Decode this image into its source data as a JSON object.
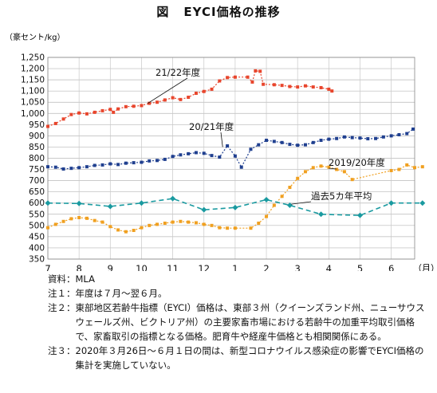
{
  "figure": {
    "label": "図",
    "title": "EYCI価格の推移"
  },
  "chart_data": {
    "type": "line",
    "unit_label": "（豪セント/kg）",
    "x_ticks": [
      "7",
      "8",
      "9",
      "10",
      "11",
      "12",
      "1",
      "2",
      "3",
      "4",
      "5",
      "6"
    ],
    "x_unit": "（月）",
    "ylim": [
      350,
      1250
    ],
    "y_ticks": [
      350,
      400,
      450,
      500,
      550,
      600,
      650,
      700,
      750,
      800,
      850,
      900,
      950,
      1000,
      1050,
      1100,
      1150,
      1200,
      1250
    ],
    "grid": true,
    "series": [
      {
        "name": "21/22年度",
        "color": "#e8452c",
        "style": "dots",
        "points": [
          [
            0,
            942
          ],
          [
            0.25,
            955
          ],
          [
            0.5,
            975
          ],
          [
            0.75,
            995
          ],
          [
            1.0,
            1002
          ],
          [
            1.25,
            998
          ],
          [
            1.5,
            1005
          ],
          [
            1.75,
            1012
          ],
          [
            2.0,
            1018
          ],
          [
            2.1,
            1005
          ],
          [
            2.25,
            1020
          ],
          [
            2.5,
            1030
          ],
          [
            2.75,
            1032
          ],
          [
            3.0,
            1035
          ],
          [
            3.25,
            1045
          ],
          [
            3.5,
            1050
          ],
          [
            3.75,
            1060
          ],
          [
            4.0,
            1070
          ],
          [
            4.25,
            1062
          ],
          [
            4.5,
            1072
          ],
          [
            4.75,
            1090
          ],
          [
            5.0,
            1098
          ],
          [
            5.25,
            1108
          ],
          [
            5.5,
            1145
          ],
          [
            5.75,
            1160
          ],
          [
            6.0,
            1162
          ],
          [
            6.4,
            1162
          ],
          [
            6.55,
            1140
          ],
          [
            6.65,
            1190
          ],
          [
            6.8,
            1188
          ],
          [
            6.9,
            1130
          ],
          [
            7.25,
            1128
          ],
          [
            7.5,
            1125
          ],
          [
            7.75,
            1120
          ],
          [
            8.0,
            1118
          ],
          [
            8.25,
            1123
          ],
          [
            8.5,
            1118
          ],
          [
            8.75,
            1115
          ],
          [
            9.0,
            1108
          ],
          [
            9.1,
            1100
          ]
        ]
      },
      {
        "name": "20/21年度",
        "color": "#1f3f8f",
        "style": "dots",
        "points": [
          [
            0,
            762
          ],
          [
            0.25,
            760
          ],
          [
            0.5,
            752
          ],
          [
            0.75,
            755
          ],
          [
            1.0,
            758
          ],
          [
            1.25,
            762
          ],
          [
            1.5,
            768
          ],
          [
            1.75,
            770
          ],
          [
            2.0,
            775
          ],
          [
            2.25,
            772
          ],
          [
            2.5,
            778
          ],
          [
            2.75,
            780
          ],
          [
            3.0,
            782
          ],
          [
            3.25,
            788
          ],
          [
            3.5,
            790
          ],
          [
            3.75,
            795
          ],
          [
            4.0,
            808
          ],
          [
            4.25,
            815
          ],
          [
            4.5,
            820
          ],
          [
            4.75,
            825
          ],
          [
            5.0,
            822
          ],
          [
            5.25,
            812
          ],
          [
            5.5,
            805
          ],
          [
            5.75,
            855
          ],
          [
            6.0,
            810
          ],
          [
            6.2,
            760
          ],
          [
            6.5,
            840
          ],
          [
            6.75,
            860
          ],
          [
            7.0,
            880
          ],
          [
            7.25,
            875
          ],
          [
            7.5,
            870
          ],
          [
            7.75,
            862
          ],
          [
            8.0,
            858
          ],
          [
            8.25,
            860
          ],
          [
            8.5,
            870
          ],
          [
            8.75,
            880
          ],
          [
            9.0,
            885
          ],
          [
            9.25,
            888
          ],
          [
            9.5,
            895
          ],
          [
            9.75,
            892
          ],
          [
            10.0,
            890
          ],
          [
            10.25,
            887
          ],
          [
            10.5,
            888
          ],
          [
            10.75,
            895
          ],
          [
            11.0,
            900
          ],
          [
            11.25,
            905
          ],
          [
            11.5,
            910
          ],
          [
            11.7,
            930
          ]
        ]
      },
      {
        "name": "2019/20年度",
        "color": "#f0a020",
        "style": "dots",
        "points": [
          [
            0,
            490
          ],
          [
            0.25,
            505
          ],
          [
            0.5,
            518
          ],
          [
            0.75,
            530
          ],
          [
            1.0,
            535
          ],
          [
            1.25,
            532
          ],
          [
            1.5,
            522
          ],
          [
            1.75,
            515
          ],
          [
            2.0,
            495
          ],
          [
            2.25,
            480
          ],
          [
            2.5,
            472
          ],
          [
            2.75,
            478
          ],
          [
            3.0,
            490
          ],
          [
            3.25,
            500
          ],
          [
            3.5,
            505
          ],
          [
            3.75,
            510
          ],
          [
            4.0,
            515
          ],
          [
            4.25,
            518
          ],
          [
            4.5,
            515
          ],
          [
            4.75,
            512
          ],
          [
            5.0,
            505
          ],
          [
            5.25,
            500
          ],
          [
            5.5,
            490
          ],
          [
            5.75,
            488
          ],
          [
            6.0,
            488
          ],
          [
            6.5,
            488
          ],
          [
            6.75,
            510
          ],
          [
            7.0,
            540
          ],
          [
            7.25,
            590
          ],
          [
            7.5,
            630
          ],
          [
            7.75,
            670
          ],
          [
            8.0,
            710
          ],
          [
            8.25,
            740
          ],
          [
            8.5,
            758
          ],
          [
            8.75,
            765
          ],
          [
            9.0,
            760
          ],
          [
            9.25,
            750
          ],
          [
            9.5,
            740
          ],
          [
            9.75,
            705
          ],
          [
            11.0,
            745
          ],
          [
            11.25,
            750
          ],
          [
            11.5,
            770
          ],
          [
            11.75,
            758
          ],
          [
            12.0,
            762
          ]
        ]
      },
      {
        "name": "過去5カ年平均",
        "color": "#1a9aa0",
        "style": "dashed",
        "points": [
          [
            0,
            600
          ],
          [
            1,
            598
          ],
          [
            2,
            585
          ],
          [
            3,
            600
          ],
          [
            4,
            620
          ],
          [
            5,
            570
          ],
          [
            6,
            580
          ],
          [
            7,
            615
          ],
          [
            7.75,
            590
          ],
          [
            8.75,
            550
          ],
          [
            10.0,
            545
          ],
          [
            11.0,
            600
          ],
          [
            12.0,
            600
          ]
        ]
      }
    ],
    "annotations": [
      {
        "text": "21/22年度",
        "target_series": "21/22年度"
      },
      {
        "text": "20/21年度",
        "target_series": "20/21年度"
      },
      {
        "text": "2019/20年度",
        "target_series": "2019/20年度"
      },
      {
        "text": "過去5カ年平均",
        "target_series": "過去5カ年平均"
      }
    ]
  },
  "notes": [
    {
      "key": "資料：",
      "text": "MLA"
    },
    {
      "key": "注１：",
      "text": "年度は７月～翌６月。"
    },
    {
      "key": "注２：",
      "text": "東部地区若齢牛指標（EYCI）価格は、東部３州（クイーンズランド州、ニューサウスウェールズ州、ビクトリア州）の主要家畜市場における若齢牛の加重平均取引価格で、家畜取引の指標となる価格。肥育牛や経産牛価格とも相関関係にある。"
    },
    {
      "key": "注３：",
      "text": "2020年３月26日～６月１日の間は、新型コロナウイルス感染症の影響でEYCI価格の集計を実施していない。"
    }
  ]
}
